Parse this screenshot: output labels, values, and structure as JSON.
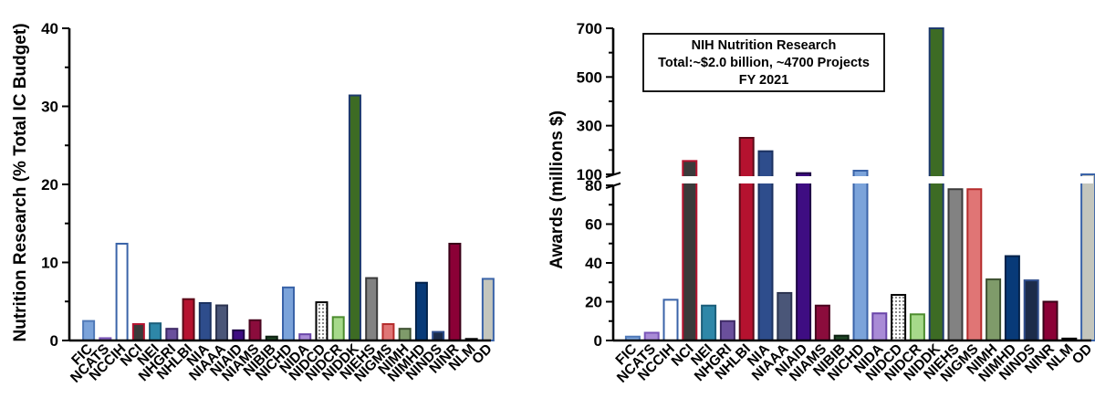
{
  "chart_data": [
    {
      "type": "bar",
      "ylabel": "Nutrition Research (% Total IC Budget)",
      "ylim": [
        0,
        40
      ],
      "yticks": [
        "0",
        "10",
        "20",
        "30",
        "40"
      ],
      "categories": [
        "FIC",
        "NCATS",
        "NCCIH",
        "NCI",
        "NEI",
        "NHGRI",
        "NHLBI",
        "NIA",
        "NIAAA",
        "NIAID",
        "NIAMS",
        "NIBIB",
        "NICHD",
        "NIDA",
        "NIDCD",
        "NIDCR",
        "NIDDK",
        "NIEHS",
        "NIGMS",
        "NIMH",
        "NIMHD",
        "NINDS",
        "NINR",
        "NLM",
        "OD"
      ],
      "values": [
        2.5,
        0.3,
        12.4,
        2.1,
        2.2,
        1.5,
        5.3,
        4.8,
        4.5,
        1.3,
        2.6,
        0.5,
        6.8,
        0.8,
        4.9,
        3.0,
        31.4,
        8.0,
        2.1,
        1.5,
        7.4,
        1.1,
        12.4,
        0.2,
        7.9
      ]
    },
    {
      "type": "bar",
      "ylabel": "Awards (millions $)",
      "broken_axis": true,
      "lower_ylim": [
        0,
        80
      ],
      "upper_ylim": [
        100,
        700
      ],
      "yticks_lower": [
        "0",
        "20",
        "40",
        "60",
        "80"
      ],
      "yticks_upper": [
        "100",
        "300",
        "500",
        "700"
      ],
      "categories": [
        "FIC",
        "NCATS",
        "NCCIH",
        "NCI",
        "NEI",
        "NHGRI",
        "NHLBI",
        "NIA",
        "NIAAA",
        "NIAID",
        "NIAMS",
        "NIBIB",
        "NICHD",
        "NIDA",
        "NIDCD",
        "NIDCR",
        "NIDDK",
        "NIEHS",
        "NIGMS",
        "NIMH",
        "NIMHD",
        "NINDS",
        "NINR",
        "NLM",
        "OD"
      ],
      "values": [
        2,
        4,
        21,
        155,
        18,
        10,
        250,
        195,
        24.5,
        105,
        18,
        2.5,
        115,
        14,
        23.5,
        13.5,
        700,
        78,
        78,
        31.5,
        43.5,
        31,
        20,
        1,
        100
      ],
      "annotation": [
        "NIH Nutrition Research",
        "Total:~$2.0 billion, ~4700 Projects",
        "FY 2021"
      ]
    }
  ],
  "colors": {
    "FIC": "#7BA3DA",
    "NCATS": "#A98BD6",
    "NCCIH": "#FFFFFF",
    "NCI": "#3A3A3A",
    "NEI": "#2E87A8",
    "NHGRI": "#6A4F9C",
    "NHLBI": "#B5122F",
    "NIA": "#2E4D8C",
    "NIAAA": "#4A5678",
    "NIAID": "#3E0D82",
    "NIAMS": "#8B0C3C",
    "NIBIB": "#1E4424",
    "NICHD": "#7BA3DA",
    "NIDA": "#A98BD6",
    "NIDCD": "dots",
    "NIDCR": "#A6D98A",
    "NIDDK": "#3D6B24",
    "NIEHS": "#828282",
    "NIGMS": "#E07575",
    "NIMH": "#7F9B6A",
    "NIMHD": "#083A78",
    "NINDS": "#1C2C4A",
    "NINR": "#8B0036",
    "NLM": "#2A2A2A",
    "OD": "#C4C6BD"
  },
  "edges": {
    "FIC": "#4F79B8",
    "NCATS": "#7A55B8",
    "NCCIH": "#3A63A8",
    "NCI": "#B5122F",
    "NEI": "#1B5E7A",
    "NHGRI": "#3E2A66",
    "NHLBI": "#5A0A18",
    "NIA": "#1C3260",
    "NIAAA": "#2C3450",
    "NIAID": "#1E0545",
    "NIAMS": "#4A0620",
    "NIBIB": "#0E2212",
    "NICHD": "#3A63A8",
    "NIDA": "#6A45A8",
    "NIDCD": "#000000",
    "NIDCR": "#4C8C2E",
    "NIDDK": "#1E3A6E",
    "NIEHS": "#3A3A3A",
    "NIGMS": "#B52C2C",
    "NIMH": "#3C5030",
    "NIMHD": "#03224A",
    "NINDS": "#2E4D8C",
    "NINR": "#3A0018",
    "NLM": "#000000",
    "OD": "#3A63A8"
  }
}
